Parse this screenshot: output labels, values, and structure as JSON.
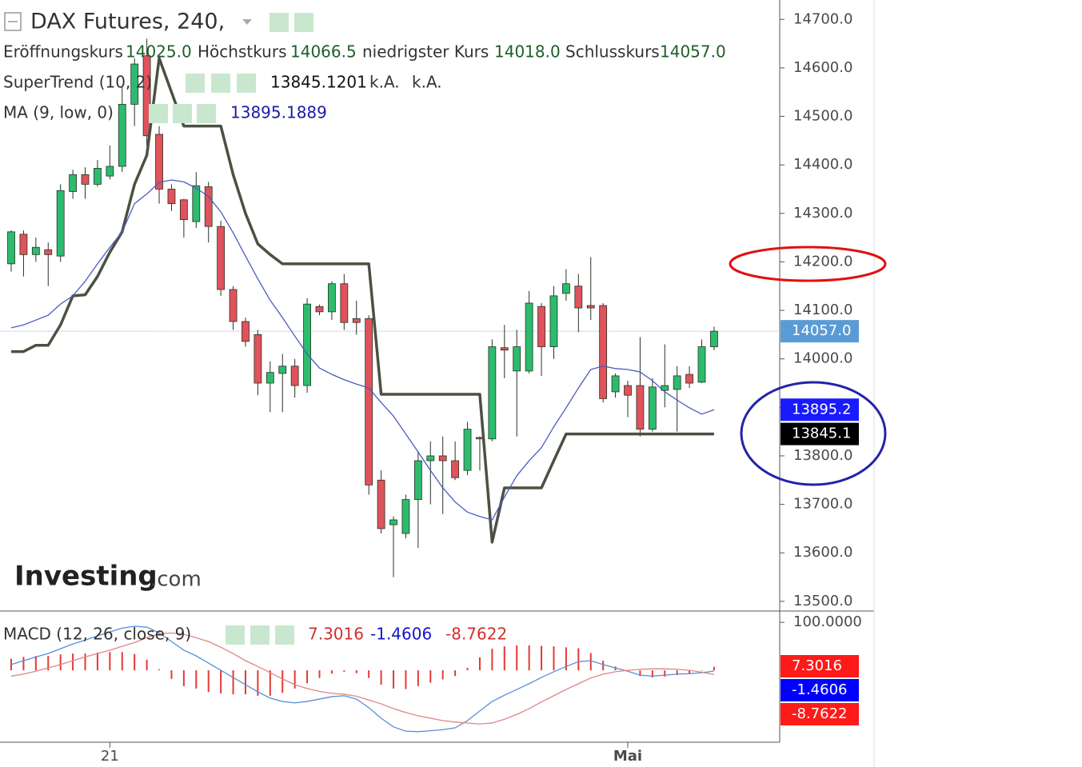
{
  "chart_data": [
    {
      "type": "candlestick",
      "title": "DAX Futures, 240,",
      "legend": [
        {
          "name": "Eröffnungskurs",
          "value": "14025.0"
        },
        {
          "name": "Höchstkurs",
          "value": "14066.5"
        },
        {
          "name": "niedrigster Kurs",
          "value": "14018.0"
        },
        {
          "name": "Schlusskurs",
          "value": "14057.0"
        }
      ],
      "categories": [
        null,
        null,
        null,
        null,
        null,
        null,
        null,
        null,
        "21",
        null,
        null,
        null,
        null,
        null,
        null,
        null,
        null,
        null,
        null,
        null,
        null,
        null,
        null,
        null,
        null,
        null,
        null,
        null,
        null,
        null,
        null,
        null,
        null,
        null,
        null,
        null,
        null,
        null,
        null,
        null,
        null,
        null,
        null,
        null,
        null,
        null,
        null,
        null,
        null,
        null,
        "Mai",
        null,
        null,
        null,
        null,
        null,
        null,
        null
      ],
      "open": [
        14196,
        14257,
        14215,
        14225,
        14212,
        14345,
        14380,
        14360,
        14377,
        14397,
        14525,
        14625,
        14463,
        14350,
        14328,
        14283,
        14355,
        14273,
        14143,
        14077,
        14050,
        13950,
        13970,
        13985,
        13945,
        14108,
        14097,
        14155,
        14083,
        14083,
        13750,
        13658,
        13640,
        13710,
        13790,
        13800,
        13790,
        13770,
        13838,
        13835,
        14023,
        13975,
        13975,
        14108,
        14025,
        14135,
        14150,
        14110,
        14110,
        13932,
        13945,
        13945,
        13855,
        13935,
        13937,
        13968,
        13952,
        14025
      ],
      "high": [
        14265,
        14265,
        14250,
        14240,
        14360,
        14390,
        14395,
        14410,
        14440,
        14560,
        14620,
        14660,
        14480,
        14360,
        14330,
        14385,
        14365,
        14285,
        14150,
        14085,
        14060,
        13995,
        14010,
        14000,
        14125,
        14112,
        14160,
        14175,
        14120,
        14090,
        13770,
        13675,
        13720,
        13810,
        13830,
        13840,
        13830,
        13870,
        13840,
        14040,
        14070,
        14060,
        14140,
        14115,
        14150,
        14185,
        14175,
        14210,
        14115,
        13970,
        13955,
        14045,
        13960,
        14030,
        13985,
        13985,
        14040,
        14066.5
      ],
      "low": [
        14180,
        14170,
        14200,
        14150,
        14200,
        14330,
        14330,
        14355,
        14370,
        14385,
        14480,
        14440,
        14320,
        14305,
        14250,
        14270,
        14240,
        14130,
        14060,
        14025,
        13925,
        13890,
        13890,
        13920,
        13930,
        14090,
        14080,
        14060,
        14050,
        13720,
        13640,
        13550,
        13630,
        13610,
        13700,
        13680,
        13750,
        13760,
        13770,
        13830,
        13960,
        13840,
        13970,
        13965,
        14000,
        14120,
        14055,
        14080,
        13910,
        13920,
        13880,
        13840,
        13850,
        13900,
        13850,
        13940,
        13950,
        14018
      ],
      "close": [
        14262,
        14215,
        14230,
        14215,
        14347,
        14380,
        14360,
        14393,
        14397,
        14525,
        14608,
        14460,
        14350,
        14320,
        14287,
        14357,
        14273,
        14143,
        14077,
        14036,
        13950,
        13972,
        13985,
        13945,
        14113,
        14097,
        14155,
        14075,
        14075,
        13740,
        13650,
        13668,
        13710,
        13790,
        13800,
        13790,
        13755,
        13855,
        13835,
        14025,
        14018,
        14025,
        14115,
        14025,
        14130,
        14155,
        14105,
        14105,
        13918,
        13965,
        13925,
        13855,
        13942,
        13945,
        13965,
        13950,
        14025,
        14057
      ],
      "up_color": "#2dbb6e",
      "down_color": "#e0525c",
      "wick_color": "#263326",
      "last_color": "#5b9bd5",
      "overlays": [
        {
          "name": "SuperTrend (10, 2)",
          "color": "#4b5142",
          "value_label": "13845.1201",
          "na": [
            "k.A.",
            "k.A."
          ],
          "badge": "13845.1",
          "badge_color": "#000000",
          "values": [
            14015,
            14015,
            14028,
            14028,
            14070,
            14130,
            14132,
            14170,
            14220,
            14262,
            14360,
            14420,
            14620,
            14550,
            14480,
            14480,
            14480,
            14480,
            14380,
            14300,
            14237,
            14215,
            14196,
            14196,
            14196,
            14196,
            14196,
            14196,
            14196,
            14196,
            13927,
            13927,
            13927,
            13927,
            13927,
            13927,
            13927,
            13927,
            13927,
            13622,
            13734,
            13734,
            13734,
            13734,
            13790,
            13845.1201,
            13845.1201,
            13845.1201,
            13845.1201,
            13845.1201,
            13845.1201,
            13845.1201,
            13845.1201,
            13845.1201,
            13845.1201,
            13845.1201,
            13845.1201,
            13845.1201
          ]
        },
        {
          "name": "MA (9, low, 0)",
          "color": "#4b5bc0",
          "value_label": "13895.1889",
          "badge": "13895.2",
          "badge_color": "#1a1aff",
          "values": [
            14064,
            14070,
            14080,
            14090,
            14113,
            14130,
            14160,
            14196,
            14230,
            14262,
            14320,
            14340,
            14364,
            14369,
            14365,
            14352,
            14335,
            14303,
            14260,
            14212,
            14165,
            14121,
            14085,
            14047,
            14010,
            13981,
            13968,
            13957,
            13948,
            13940,
            13910,
            13882,
            13845,
            13808,
            13770,
            13734,
            13705,
            13684,
            13675,
            13668,
            13715,
            13759,
            13790,
            13817,
            13860,
            13899,
            13940,
            13978,
            13985,
            13980,
            13978,
            13973,
            13955,
            13932,
            13915,
            13899,
            13886,
            13895.1889
          ]
        }
      ],
      "ylim": [
        13480,
        14740
      ],
      "yticks": [
        {
          "value": 13500,
          "label": "13500.0"
        },
        {
          "value": 13600,
          "label": "13600.0"
        },
        {
          "value": 13700,
          "label": "13700.0"
        },
        {
          "value": 13800,
          "label": "13800.0"
        },
        {
          "value": 13900,
          "label": "13900.0"
        },
        {
          "value": 14000,
          "label": "14000.0"
        },
        {
          "value": 14100,
          "label": "14100.0"
        },
        {
          "value": 14200,
          "label": "14200.0"
        },
        {
          "value": 14300,
          "label": "14300.0"
        },
        {
          "value": 14400,
          "label": "14400.0"
        },
        {
          "value": 14500,
          "label": "14500.0"
        },
        {
          "value": 14600,
          "label": "14600.0"
        },
        {
          "value": 14700,
          "label": "14700.0"
        }
      ],
      "grid": false,
      "watermark": [
        "Investing",
        ".com"
      ]
    },
    {
      "type": "macd",
      "title": "MACD (12, 26, close, 9)",
      "ylim": [
        -145,
        122
      ],
      "yticks": [
        {
          "value": 100,
          "label": "100.0000"
        }
      ],
      "series": [
        {
          "style": "histogram",
          "color": "#e53935",
          "badge_color": "#ff1a1a",
          "value_label": "7.3016",
          "values": [
            24,
            28,
            30,
            30,
            33,
            35,
            35,
            37,
            38,
            38,
            34,
            22,
            2,
            -18,
            -33,
            -38,
            -45,
            -48,
            -50,
            -50,
            -53,
            -53,
            -47,
            -38,
            -27,
            -16,
            -7,
            -3,
            -6,
            -16,
            -30,
            -38,
            -39,
            -33,
            -26,
            -19,
            -12,
            5,
            27,
            45,
            50,
            52,
            52,
            51,
            50,
            48,
            46,
            36,
            20,
            8,
            -2,
            -12,
            -15,
            -13,
            -10,
            -7,
            -1,
            7.3016
          ]
        },
        {
          "style": "line",
          "color": "#5b8fd6",
          "badge_color": "#0000ff",
          "value_label": "-1.4606",
          "values": [
            12,
            20,
            28,
            35,
            45,
            55,
            63,
            72,
            80,
            88,
            92,
            90,
            78,
            60,
            42,
            30,
            15,
            0,
            -15,
            -30,
            -45,
            -58,
            -65,
            -68,
            -65,
            -60,
            -55,
            -53,
            -60,
            -78,
            -100,
            -118,
            -127,
            -128,
            -126,
            -124,
            -120,
            -105,
            -85,
            -65,
            -52,
            -40,
            -28,
            -15,
            -3,
            8,
            18,
            20,
            12,
            5,
            -2,
            -10,
            -12,
            -10,
            -8,
            -7,
            -5,
            -1.4606
          ]
        },
        {
          "style": "line",
          "color": "#e08585",
          "badge_color": "#ff1a1a",
          "value_label": "-8.7622",
          "values": [
            -12,
            -8,
            -2,
            5,
            12,
            20,
            28,
            35,
            42,
            50,
            58,
            68,
            76,
            78,
            75,
            68,
            60,
            48,
            35,
            20,
            8,
            -5,
            -18,
            -30,
            -38,
            -44,
            -48,
            -50,
            -54,
            -62,
            -70,
            -80,
            -88,
            -95,
            -100,
            -105,
            -108,
            -110,
            -112,
            -110,
            -102,
            -92,
            -80,
            -66,
            -53,
            -40,
            -28,
            -16,
            -8,
            -3,
            0,
            2,
            3,
            3,
            2,
            0,
            -4,
            -8.7622
          ]
        }
      ]
    }
  ]
}
